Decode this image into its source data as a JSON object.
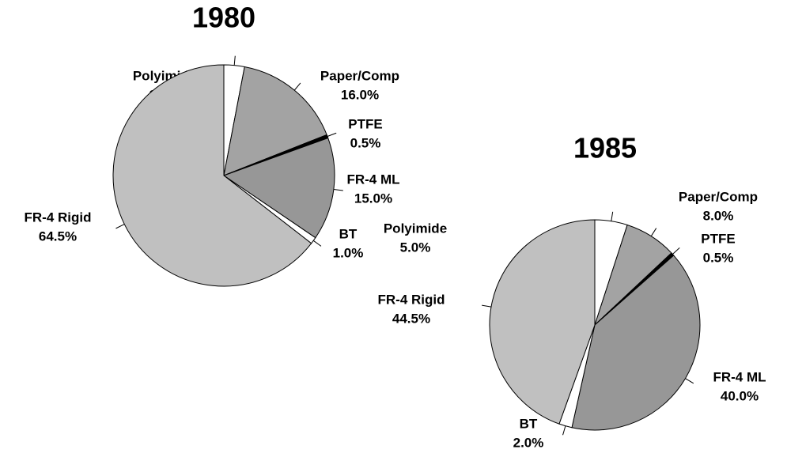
{
  "chart_data": [
    {
      "type": "pie",
      "title": "1980",
      "categories": [
        "Polyimide",
        "Paper/Comp",
        "PTFE",
        "FR-4 ML",
        "BT",
        "FR-4 Rigid"
      ],
      "values": [
        3.0,
        16.0,
        0.5,
        15.0,
        1.0,
        64.5
      ],
      "value_labels": [
        "3.0%",
        "16.0%",
        "0.5%",
        "15.0%",
        "1.0%",
        "64.5%"
      ],
      "colors": [
        "#ffffff",
        "#a3a3a3",
        "#000000",
        "#979797",
        "#ffffff",
        "#c0c0c0"
      ]
    },
    {
      "type": "pie",
      "title": "1985",
      "categories": [
        "Polyimide",
        "Paper/Comp",
        "PTFE",
        "FR-4 ML",
        "BT",
        "FR-4 Rigid"
      ],
      "values": [
        5.0,
        8.0,
        0.5,
        40.0,
        2.0,
        44.5
      ],
      "value_labels": [
        "5.0%",
        "8.0%",
        "0.5%",
        "40.0%",
        "2.0%",
        "44.5%"
      ],
      "colors": [
        "#ffffff",
        "#a3a3a3",
        "#000000",
        "#979797",
        "#ffffff",
        "#c0c0c0"
      ]
    }
  ]
}
